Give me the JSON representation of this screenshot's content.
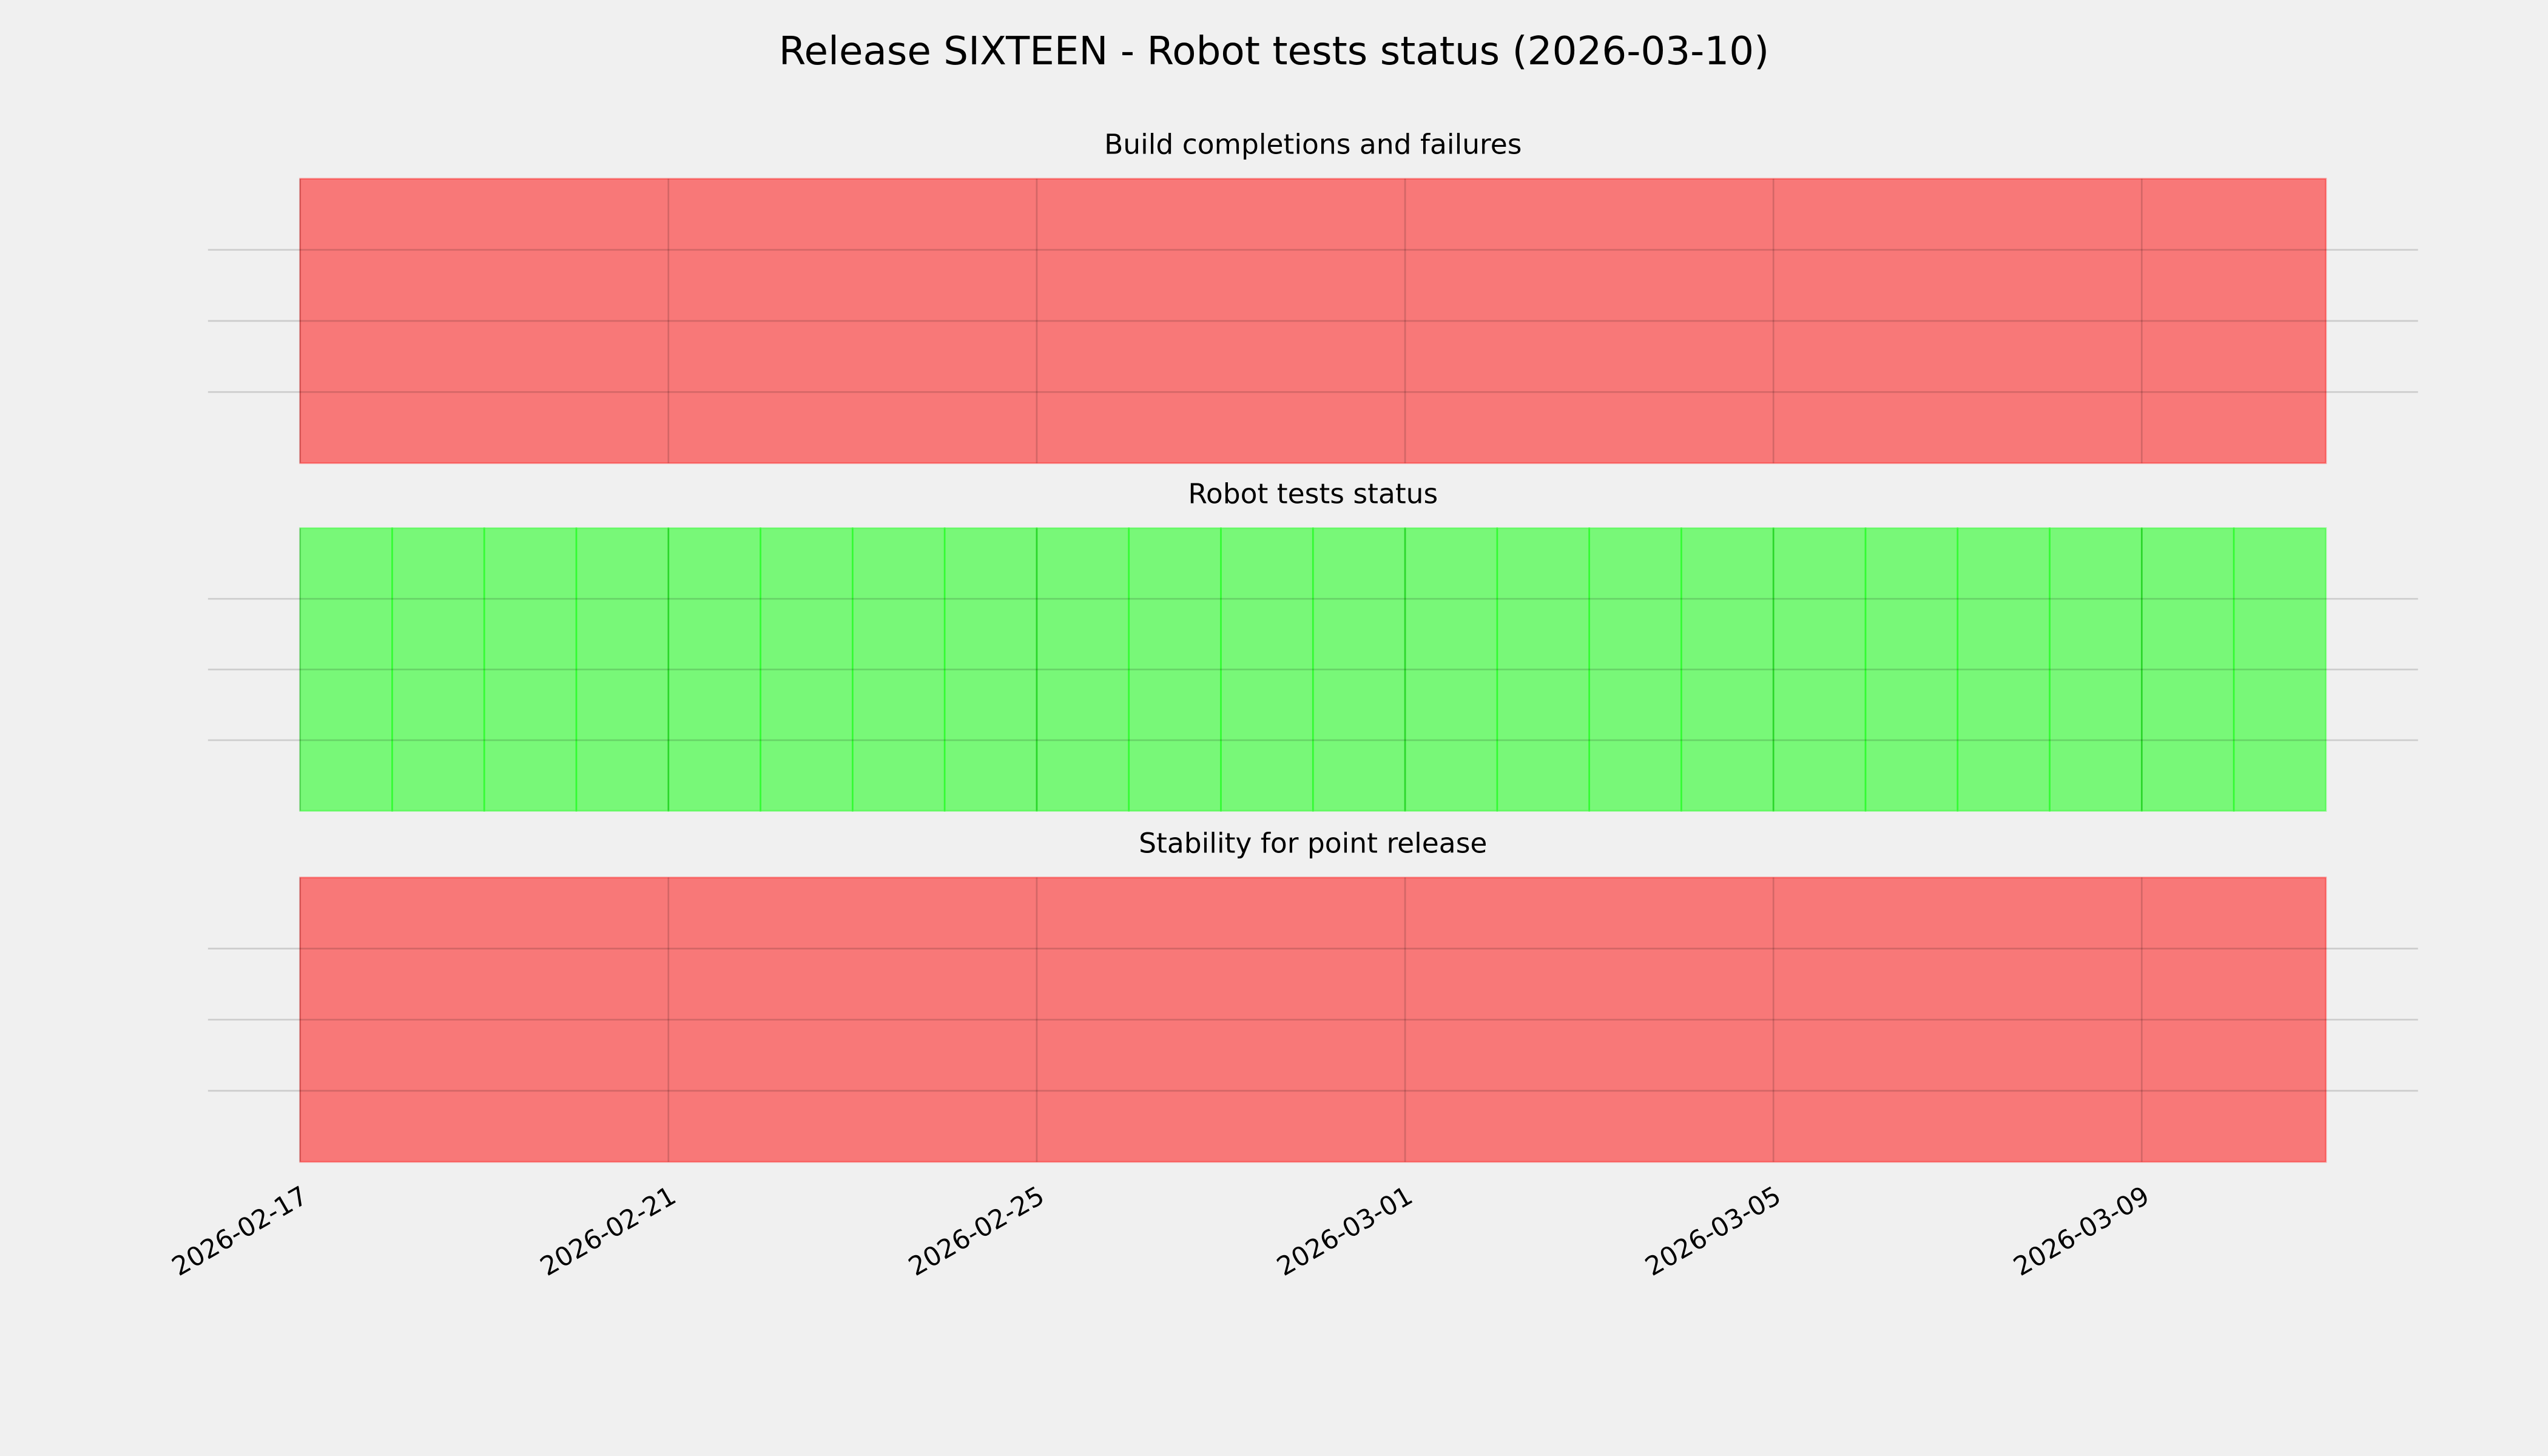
{
  "title": "Release SIXTEEN - Robot tests status (2026-03-10)",
  "xlim": [
    "2026-02-16",
    "2026-03-12"
  ],
  "xticks": [
    "2026-02-17",
    "2026-02-21",
    "2026-02-25",
    "2026-03-01",
    "2026-03-05",
    "2026-03-09"
  ],
  "grid": true,
  "chart_data": [
    {
      "type": "span",
      "title": "Build completions and failures",
      "spans": [
        {
          "start": "2026-02-17",
          "end": "2026-03-11",
          "color": "#ff0000"
        }
      ]
    },
    {
      "type": "span",
      "title": "Robot tests status",
      "spans": [
        {
          "start": "2026-02-17",
          "end": "2026-02-18",
          "color": "#00ff00"
        },
        {
          "start": "2026-02-18",
          "end": "2026-02-19",
          "color": "#00ff00"
        },
        {
          "start": "2026-02-19",
          "end": "2026-02-20",
          "color": "#00ff00"
        },
        {
          "start": "2026-02-20",
          "end": "2026-02-21",
          "color": "#00ff00"
        },
        {
          "start": "2026-02-21",
          "end": "2026-02-22",
          "color": "#00ff00"
        },
        {
          "start": "2026-02-22",
          "end": "2026-02-23",
          "color": "#00ff00"
        },
        {
          "start": "2026-02-23",
          "end": "2026-02-24",
          "color": "#00ff00"
        },
        {
          "start": "2026-02-24",
          "end": "2026-02-25",
          "color": "#00ff00"
        },
        {
          "start": "2026-02-25",
          "end": "2026-02-26",
          "color": "#00ff00"
        },
        {
          "start": "2026-02-26",
          "end": "2026-02-27",
          "color": "#00ff00"
        },
        {
          "start": "2026-02-27",
          "end": "2026-02-28",
          "color": "#00ff00"
        },
        {
          "start": "2026-02-28",
          "end": "2026-03-01",
          "color": "#00ff00"
        },
        {
          "start": "2026-03-01",
          "end": "2026-03-02",
          "color": "#00ff00"
        },
        {
          "start": "2026-03-02",
          "end": "2026-03-03",
          "color": "#00ff00"
        },
        {
          "start": "2026-03-03",
          "end": "2026-03-04",
          "color": "#00ff00"
        },
        {
          "start": "2026-03-04",
          "end": "2026-03-05",
          "color": "#00ff00"
        },
        {
          "start": "2026-03-05",
          "end": "2026-03-06",
          "color": "#00ff00"
        },
        {
          "start": "2026-03-06",
          "end": "2026-03-07",
          "color": "#00ff00"
        },
        {
          "start": "2026-03-07",
          "end": "2026-03-08",
          "color": "#00ff00"
        },
        {
          "start": "2026-03-08",
          "end": "2026-03-09",
          "color": "#00ff00"
        },
        {
          "start": "2026-03-09",
          "end": "2026-03-10",
          "color": "#00ff00"
        },
        {
          "start": "2026-03-10",
          "end": "2026-03-11",
          "color": "#00ff00"
        }
      ]
    },
    {
      "type": "span",
      "title": "Stability for point release",
      "spans": [
        {
          "start": "2026-02-17",
          "end": "2026-03-11",
          "color": "#ff0000"
        }
      ]
    }
  ]
}
